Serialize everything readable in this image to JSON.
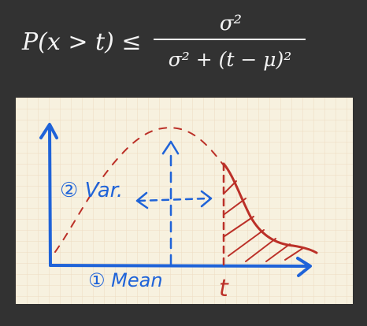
{
  "formula": {
    "lhs": "P(x > t) ≤",
    "numerator": "σ²",
    "denominator": "σ² + (t − μ)²"
  },
  "annotations": {
    "variance_label": "② Var.",
    "mean_label": "① Mean",
    "t_label": "t"
  },
  "colors": {
    "background": "#323232",
    "paper": "#f7f1df",
    "grid": "#eddcc0",
    "blue_ink": "#1f63d8",
    "red_ink": "#bb3028",
    "formula_text": "#f4f4f4"
  },
  "icons": {
    "x_axis_arrow": "arrow-right-icon",
    "y_axis_arrow": "arrow-up-icon",
    "mean_arrow": "arrow-up-icon",
    "variance_arrows": "double-arrow-horizontal-icon"
  }
}
